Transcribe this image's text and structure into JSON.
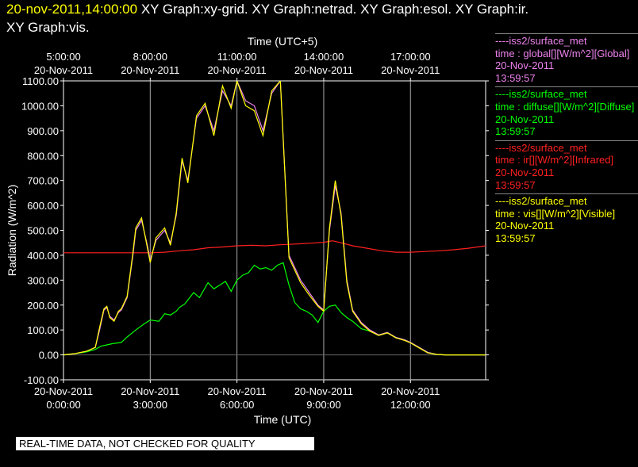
{
  "header": {
    "timestamp": "20-nov-2011,14:00:00",
    "line1_rest": " XY Graph:xy-grid.  XY Graph:netrad.  XY Graph:esol.  XY Graph:ir.",
    "line2": "XY Graph:vis."
  },
  "legend": [
    {
      "source": "----iss2/surface_met",
      "var": "time : global[][W/m^2][Global]",
      "date": "20-Nov-2011",
      "time": "13:59:57",
      "color": "#ee82ee"
    },
    {
      "source": "----iss2/surface_met",
      "var": "time : diffuse[][W/m^2][Diffuse]",
      "date": "20-Nov-2011",
      "time": "13:59:57",
      "color": "#00ff00"
    },
    {
      "source": "----iss2/surface_met",
      "var": "time : ir[][W/m^2][Infrared]",
      "date": "20-Nov-2011",
      "time": "13:59:57",
      "color": "#ff2020"
    },
    {
      "source": "----iss2/surface_met",
      "var": "time : vis[][W/m^2][Visible]",
      "date": "20-Nov-2011",
      "time": "13:59:57",
      "color": "#ffff00"
    }
  ],
  "notice": "REAL-TIME DATA, NOT CHECKED FOR QUALITY",
  "chart_data": {
    "type": "line",
    "ylabel": "Radiation (W/m^2)",
    "xlabel_bottom": "Time (UTC)",
    "xlabel_top": "Time (UTC+5)",
    "ylim": [
      -100,
      1100
    ],
    "xlim_hours_utc": [
      0,
      14.6
    ],
    "yticks": [
      "-100.00",
      "0.00",
      "100.00",
      "200.00",
      "300.00",
      "400.00",
      "500.00",
      "600.00",
      "700.00",
      "800.00",
      "900.00",
      "1000.00",
      "1100.00"
    ],
    "xticks_bottom": [
      {
        "date": "20-Nov-2011",
        "time": "0:00:00",
        "x": 0
      },
      {
        "date": "20-Nov-2011",
        "time": "3:00:00",
        "x": 3
      },
      {
        "date": "20-Nov-2011",
        "time": "6:00:00",
        "x": 6
      },
      {
        "date": "20-Nov-2011",
        "time": "9:00:00",
        "x": 9
      },
      {
        "date": "20-Nov-2011",
        "time": "12:00:00",
        "x": 12
      }
    ],
    "xticks_top": [
      {
        "date": "20-Nov-2011",
        "time": "5:00:00",
        "x": 0
      },
      {
        "date": "20-Nov-2011",
        "time": "8:00:00",
        "x": 3
      },
      {
        "date": "20-Nov-2011",
        "time": "11:00:00",
        "x": 6
      },
      {
        "date": "20-Nov-2011",
        "time": "14:00:00",
        "x": 9
      },
      {
        "date": "20-Nov-2011",
        "time": "17:00:00",
        "x": 12
      }
    ],
    "grid": true,
    "series": [
      {
        "key": "ir",
        "color": "#ff2020",
        "x": [
          0,
          1,
          2,
          3,
          3.5,
          4,
          4.5,
          5,
          5.5,
          6,
          6.5,
          7,
          7.5,
          8,
          8.5,
          9,
          9.3,
          9.6,
          10,
          10.5,
          11,
          11.5,
          12,
          12.5,
          13,
          13.5,
          14,
          14.6
        ],
        "y": [
          410,
          410,
          410,
          410,
          412,
          418,
          422,
          430,
          433,
          438,
          440,
          438,
          442,
          445,
          448,
          452,
          458,
          450,
          438,
          428,
          418,
          412,
          412,
          415,
          418,
          422,
          428,
          438
        ]
      },
      {
        "key": "diffuse",
        "color": "#00ff00",
        "x": [
          0,
          0.4,
          0.8,
          1.1,
          1.3,
          1.5,
          1.7,
          2,
          2.2,
          2.5,
          2.8,
          3,
          3.3,
          3.5,
          3.7,
          3.9,
          4,
          4.2,
          4.5,
          4.7,
          5,
          5.2,
          5.4,
          5.6,
          5.8,
          6,
          6.2,
          6.4,
          6.6,
          6.8,
          7,
          7.2,
          7.4,
          7.6,
          7.8,
          8,
          8.2,
          8.4,
          8.6,
          8.8,
          9,
          9.2,
          9.4,
          9.6,
          9.8,
          10,
          10.3,
          10.6,
          10.9,
          11.2,
          11.5,
          11.8,
          12,
          12.3,
          12.6,
          12.9,
          13.2,
          13.5,
          14,
          14.6
        ],
        "y": [
          0,
          5,
          12,
          22,
          35,
          40,
          45,
          50,
          72,
          100,
          125,
          140,
          135,
          165,
          160,
          175,
          190,
          205,
          250,
          230,
          290,
          265,
          280,
          295,
          255,
          300,
          320,
          330,
          360,
          345,
          350,
          340,
          360,
          370,
          280,
          210,
          185,
          175,
          160,
          130,
          175,
          195,
          200,
          170,
          150,
          135,
          105,
          95,
          80,
          90,
          70,
          60,
          50,
          30,
          10,
          2,
          0,
          0,
          0,
          0
        ]
      },
      {
        "key": "global",
        "color": "#ee82ee",
        "x": [
          0,
          0.4,
          0.8,
          1.1,
          1.25,
          1.4,
          1.5,
          1.6,
          1.75,
          1.9,
          2,
          2.2,
          2.4,
          2.5,
          2.7,
          2.9,
          3,
          3.2,
          3.5,
          3.7,
          3.9,
          4.1,
          4.3,
          4.6,
          4.9,
          5.2,
          5.5,
          5.8,
          6,
          6.3,
          6.6,
          6.9,
          7.2,
          7.5,
          7.8,
          8.2,
          8.5,
          8.8,
          9,
          9.2,
          9.4,
          9.6,
          9.8,
          10,
          10.3,
          10.6,
          10.9,
          11.2,
          11.5,
          11.8,
          12,
          12.3,
          12.6,
          12.9,
          13.2,
          13.5,
          14,
          14.6
        ],
        "y": [
          0,
          5,
          15,
          30,
          100,
          180,
          190,
          155,
          140,
          170,
          180,
          230,
          400,
          500,
          540,
          440,
          380,
          460,
          500,
          450,
          560,
          780,
          700,
          950,
          1000,
          900,
          1060,
          1000,
          1100,
          1020,
          1000,
          900,
          1050,
          1100,
          400,
          300,
          250,
          200,
          180,
          500,
          680,
          570,
          300,
          180,
          130,
          100,
          80,
          90,
          70,
          60,
          50,
          30,
          10,
          2,
          0,
          0,
          0,
          0
        ]
      },
      {
        "key": "vis",
        "color": "#ffff00",
        "x": [
          0,
          0.4,
          0.8,
          1.1,
          1.25,
          1.4,
          1.5,
          1.6,
          1.75,
          1.9,
          2,
          2.2,
          2.4,
          2.5,
          2.7,
          2.9,
          3,
          3.2,
          3.5,
          3.7,
          3.9,
          4.1,
          4.3,
          4.6,
          4.9,
          5.2,
          5.5,
          5.8,
          6,
          6.3,
          6.6,
          6.9,
          7.2,
          7.5,
          7.8,
          8.2,
          8.5,
          8.8,
          9,
          9.2,
          9.4,
          9.6,
          9.8,
          10,
          10.3,
          10.6,
          10.9,
          11.2,
          11.5,
          11.8,
          12,
          12.3,
          12.6,
          12.9,
          13.2,
          13.5,
          14,
          14.6
        ],
        "y": [
          0,
          5,
          15,
          30,
          110,
          185,
          195,
          150,
          135,
          175,
          185,
          235,
          410,
          510,
          550,
          430,
          370,
          470,
          510,
          440,
          570,
          790,
          690,
          960,
          1010,
          880,
          1080,
          990,
          1100,
          1000,
          980,
          880,
          1060,
          1100,
          390,
          290,
          240,
          195,
          175,
          510,
          700,
          560,
          290,
          175,
          125,
          95,
          78,
          88,
          68,
          58,
          48,
          28,
          8,
          2,
          0,
          0,
          0,
          0
        ]
      }
    ]
  }
}
